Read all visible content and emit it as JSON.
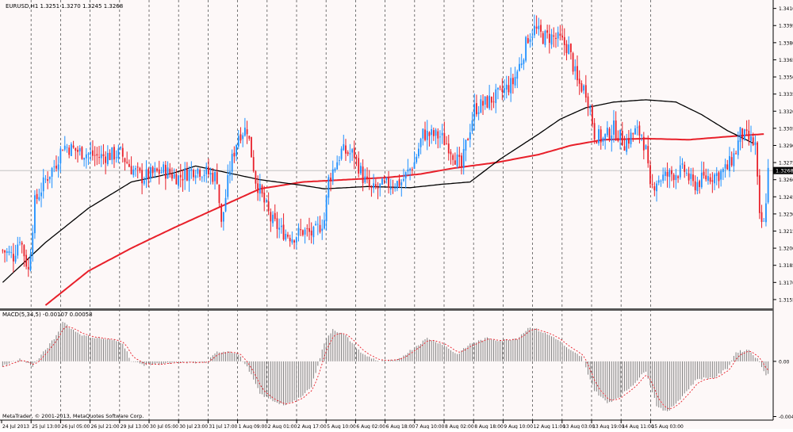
{
  "price_panel": {
    "header": "EURUSD,H1  1.3251 1.3270 1.3245 1.3268",
    "current_price": "1.3268",
    "y_ticks": [
      "1.3410",
      "1.3395",
      "1.3380",
      "1.3365",
      "1.3350",
      "1.3335",
      "1.3320",
      "1.3305",
      "1.3290",
      "1.3275",
      "1.3260",
      "1.3245",
      "1.3230",
      "1.3215",
      "1.3200",
      "1.3185",
      "1.3170",
      "1.3155"
    ]
  },
  "macd_panel": {
    "header": "MACD(5,34,5) -0.00107 0.00058",
    "y_ticks": [
      "0.00",
      "-0.00476"
    ]
  },
  "copyright": "MetaTrader, © 2001-2013, MetaQuotes Software Corp.",
  "x_ticks": [
    "24 Jul 2013",
    "25 Jul 13:00",
    "26 Jul 05:00",
    "26 Jul 21:00",
    "29 Jul 13:00",
    "30 Jul 05:00",
    "30 Jul 23:00",
    "31 Jul 17:00",
    "1 Aug 09:00",
    "2 Aug 01:00",
    "2 Aug 17:00",
    "5 Aug 10:00",
    "6 Aug 02:00",
    "6 Aug 18:00",
    "7 Aug 10:00",
    "8 Aug 02:00",
    "8 Aug 18:00",
    "9 Aug 10:00",
    "12 Aug 11:00",
    "13 Aug 03:00",
    "13 Aug 19:00",
    "14 Aug 11:00",
    "15 Aug 03:00"
  ],
  "colors": {
    "bull": "#1e90ff",
    "bear": "#e8202a",
    "ma_fast": "#000000",
    "ma_slow": "#e8202a",
    "macd_hist": "#808080",
    "macd_signal": "#e8202a",
    "background": "#fdf8f8",
    "grid": "#555555"
  },
  "chart_data": {
    "type": "candlestick",
    "symbol": "EURUSD",
    "timeframe": "H1",
    "ylim": [
      1.3148,
      1.3416
    ],
    "key_points": [
      [
        0,
        1.3198
      ],
      [
        5,
        1.3193
      ],
      [
        8,
        1.321
      ],
      [
        12,
        1.318
      ],
      [
        15,
        1.324
      ],
      [
        20,
        1.326
      ],
      [
        25,
        1.3275
      ],
      [
        28,
        1.329
      ],
      [
        35,
        1.3285
      ],
      [
        45,
        1.328
      ],
      [
        55,
        1.3283
      ],
      [
        60,
        1.327
      ],
      [
        65,
        1.3262
      ],
      [
        70,
        1.3265
      ],
      [
        75,
        1.3268
      ],
      [
        82,
        1.3262
      ],
      [
        90,
        1.327
      ],
      [
        100,
        1.3262
      ],
      [
        102,
        1.322
      ],
      [
        106,
        1.327
      ],
      [
        110,
        1.33
      ],
      [
        114,
        1.3305
      ],
      [
        118,
        1.326
      ],
      [
        122,
        1.324
      ],
      [
        125,
        1.3225
      ],
      [
        130,
        1.3215
      ],
      [
        135,
        1.321
      ],
      [
        140,
        1.3215
      ],
      [
        145,
        1.3212
      ],
      [
        150,
        1.3225
      ],
      [
        152,
        1.326
      ],
      [
        158,
        1.3285
      ],
      [
        164,
        1.3282
      ],
      [
        168,
        1.3262
      ],
      [
        172,
        1.325
      ],
      [
        178,
        1.3255
      ],
      [
        186,
        1.3258
      ],
      [
        192,
        1.3275
      ],
      [
        196,
        1.33
      ],
      [
        204,
        1.3298
      ],
      [
        208,
        1.329
      ],
      [
        214,
        1.327
      ],
      [
        216,
        1.329
      ],
      [
        220,
        1.3322
      ],
      [
        226,
        1.3328
      ],
      [
        232,
        1.3335
      ],
      [
        238,
        1.3345
      ],
      [
        242,
        1.3365
      ],
      [
        245,
        1.3385
      ],
      [
        248,
        1.3392
      ],
      [
        252,
        1.3385
      ],
      [
        256,
        1.3385
      ],
      [
        260,
        1.3382
      ],
      [
        264,
        1.3375
      ],
      [
        268,
        1.3345
      ],
      [
        272,
        1.3338
      ],
      [
        274,
        1.3322
      ],
      [
        276,
        1.33
      ],
      [
        280,
        1.3295
      ],
      [
        285,
        1.3305
      ],
      [
        290,
        1.3292
      ],
      [
        295,
        1.3302
      ],
      [
        298,
        1.33
      ],
      [
        300,
        1.3285
      ],
      [
        302,
        1.325
      ],
      [
        305,
        1.326
      ],
      [
        312,
        1.3265
      ],
      [
        318,
        1.3268
      ],
      [
        322,
        1.3255
      ],
      [
        328,
        1.3262
      ],
      [
        334,
        1.3265
      ],
      [
        338,
        1.327
      ],
      [
        342,
        1.3285
      ],
      [
        344,
        1.33
      ],
      [
        348,
        1.3295
      ],
      [
        351,
        1.329
      ],
      [
        353,
        1.3225
      ],
      [
        355,
        1.322
      ],
      [
        357,
        1.3268
      ]
    ],
    "ma_fast": [
      [
        0,
        1.317
      ],
      [
        20,
        1.3205
      ],
      [
        40,
        1.3235
      ],
      [
        60,
        1.3258
      ],
      [
        80,
        1.3266
      ],
      [
        90,
        1.3272
      ],
      [
        100,
        1.3268
      ],
      [
        120,
        1.326
      ],
      [
        140,
        1.3255
      ],
      [
        150,
        1.3252
      ],
      [
        170,
        1.3254
      ],
      [
        190,
        1.3253
      ],
      [
        205,
        1.3256
      ],
      [
        218,
        1.3258
      ],
      [
        232,
        1.3278
      ],
      [
        250,
        1.33
      ],
      [
        260,
        1.3313
      ],
      [
        272,
        1.3323
      ],
      [
        285,
        1.3328
      ],
      [
        300,
        1.333
      ],
      [
        314,
        1.3328
      ],
      [
        326,
        1.3317
      ],
      [
        338,
        1.3303
      ],
      [
        350,
        1.3292
      ]
    ],
    "ma_slow": [
      [
        20,
        1.315
      ],
      [
        40,
        1.318
      ],
      [
        60,
        1.32
      ],
      [
        80,
        1.3218
      ],
      [
        100,
        1.3235
      ],
      [
        120,
        1.3252
      ],
      [
        140,
        1.3258
      ],
      [
        160,
        1.326
      ],
      [
        180,
        1.3262
      ],
      [
        195,
        1.3265
      ],
      [
        210,
        1.327
      ],
      [
        230,
        1.3275
      ],
      [
        250,
        1.3282
      ],
      [
        265,
        1.329
      ],
      [
        280,
        1.3295
      ],
      [
        300,
        1.3296
      ],
      [
        320,
        1.3295
      ],
      [
        340,
        1.3298
      ],
      [
        355,
        1.33
      ]
    ],
    "macd_hist": [
      [
        0,
        -0.0004
      ],
      [
        8,
        0.0002
      ],
      [
        14,
        -0.0004
      ],
      [
        20,
        0.001
      ],
      [
        25,
        0.0022
      ],
      [
        28,
        0.0035
      ],
      [
        32,
        0.0028
      ],
      [
        38,
        0.0022
      ],
      [
        45,
        0.002
      ],
      [
        52,
        0.0018
      ],
      [
        56,
        0.0016
      ],
      [
        60,
        0.0
      ],
      [
        66,
        -0.0003
      ],
      [
        75,
        -0.0002
      ],
      [
        85,
        -0.0001
      ],
      [
        95,
        -0.0001
      ],
      [
        100,
        0.0008
      ],
      [
        106,
        0.0009
      ],
      [
        110,
        0.0006
      ],
      [
        115,
        -0.0008
      ],
      [
        120,
        -0.0028
      ],
      [
        126,
        -0.0034
      ],
      [
        132,
        -0.0038
      ],
      [
        138,
        -0.0032
      ],
      [
        144,
        -0.0022
      ],
      [
        150,
        0.0016
      ],
      [
        154,
        0.0028
      ],
      [
        160,
        0.0022
      ],
      [
        168,
        0.0006
      ],
      [
        176,
        0.0
      ],
      [
        184,
        0.0001
      ],
      [
        192,
        0.0012
      ],
      [
        198,
        0.002
      ],
      [
        205,
        0.0015
      ],
      [
        212,
        0.0006
      ],
      [
        218,
        0.0015
      ],
      [
        226,
        0.002
      ],
      [
        232,
        0.0018
      ],
      [
        240,
        0.002
      ],
      [
        246,
        0.003
      ],
      [
        252,
        0.0025
      ],
      [
        258,
        0.002
      ],
      [
        264,
        0.001
      ],
      [
        270,
        0.0004
      ],
      [
        276,
        -0.0025
      ],
      [
        282,
        -0.0036
      ],
      [
        288,
        -0.003
      ],
      [
        294,
        -0.002
      ],
      [
        300,
        -0.0008
      ],
      [
        305,
        -0.0038
      ],
      [
        310,
        -0.0044
      ],
      [
        316,
        -0.0032
      ],
      [
        324,
        -0.0015
      ],
      [
        332,
        -0.0014
      ],
      [
        338,
        -0.0006
      ],
      [
        342,
        0.0008
      ],
      [
        348,
        0.001
      ],
      [
        352,
        0.0002
      ],
      [
        356,
        -0.0011
      ]
    ],
    "macd_ylim": [
      -0.005,
      0.0043
    ]
  }
}
